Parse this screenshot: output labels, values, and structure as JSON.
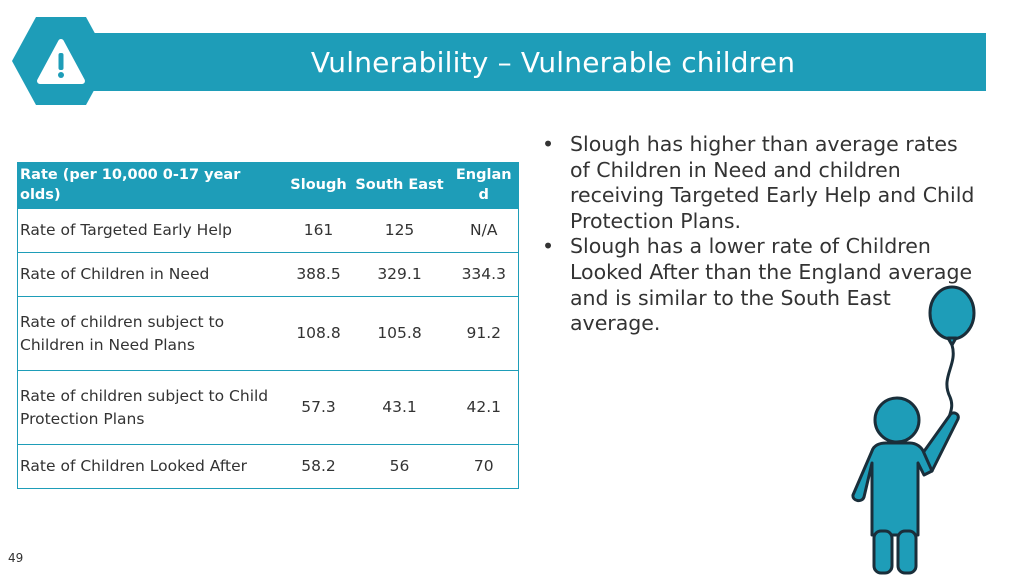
{
  "slide": {
    "title": "Vulnerability – Vulnerable children",
    "page_number": "49",
    "accent_color": "#1E9DB8",
    "title_icon": "warning-icon",
    "illustration": "child-with-balloon-icon"
  },
  "table": {
    "headers": [
      "Rate (per 10,000 0-17 year olds)",
      "Slough",
      "South East",
      "England"
    ],
    "rows": [
      {
        "label": "Rate of Targeted Early Help",
        "slough": "161",
        "south_east": "125",
        "england": "N/A"
      },
      {
        "label": "Rate of Children in Need",
        "slough": "388.5",
        "south_east": "329.1",
        "england": "334.3"
      },
      {
        "label": "Rate of children subject to Children in Need Plans",
        "slough": "108.8",
        "south_east": "105.8",
        "england": "91.2"
      },
      {
        "label": "Rate of children subject to Child Protection Plans",
        "slough": "57.3",
        "south_east": "43.1",
        "england": "42.1"
      },
      {
        "label": "Rate of Children Looked After",
        "slough": "58.2",
        "south_east": "56",
        "england": "70"
      }
    ]
  },
  "bullets": [
    "Slough has higher than average rates of Children in Need and children receiving Targeted Early Help and Child Protection Plans.",
    "Slough has a lower rate of Children Looked After than the England average and is similar to the South East average."
  ]
}
